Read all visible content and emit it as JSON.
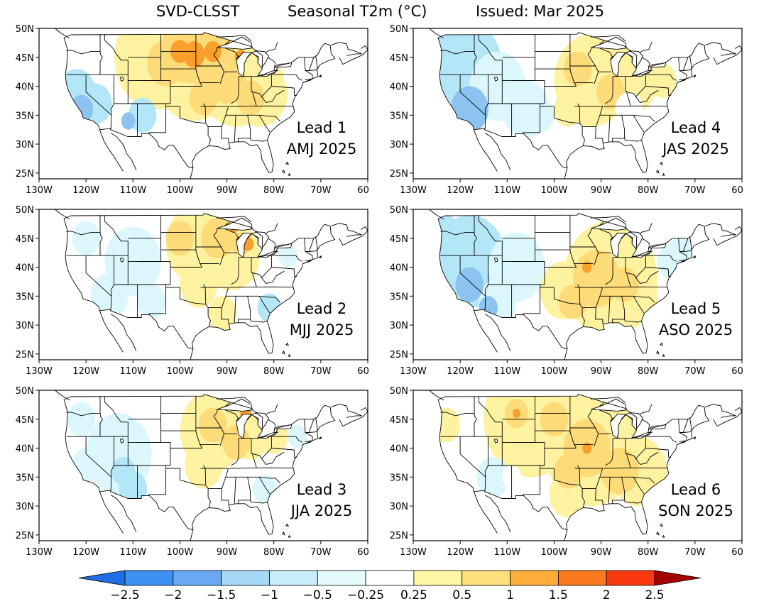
{
  "title": {
    "model": "SVD-CLSST",
    "variable": "Seasonal T2m (°C)",
    "issued": "Issued: Mar 2025"
  },
  "axes": {
    "lat_labels": [
      "50N",
      "45N",
      "40N",
      "35N",
      "30N",
      "25N"
    ],
    "lon_labels": [
      "130W",
      "120W",
      "110W",
      "100W",
      "90W",
      "80W",
      "70W",
      "60W"
    ],
    "lat_range": [
      24,
      50
    ],
    "lon_range": [
      -130,
      -60
    ]
  },
  "panels": [
    {
      "lead": "Lead 1",
      "season": "AMJ 2025"
    },
    {
      "lead": "Lead 4",
      "season": "JAS 2025"
    },
    {
      "lead": "Lead 2",
      "season": "MJJ 2025"
    },
    {
      "lead": "Lead 5",
      "season": "ASO 2025"
    },
    {
      "lead": "Lead 3",
      "season": "JJA 2025"
    },
    {
      "lead": "Lead 6",
      "season": "SON 2025"
    }
  ],
  "colorbar": {
    "labels": [
      "-2.5",
      "-2",
      "-1.5",
      "-1",
      "-0.5",
      "-0.25",
      "0.25",
      "0.5",
      "1",
      "1.5",
      "2",
      "2.5"
    ],
    "colors": [
      "#1e6ee6",
      "#3d8ff0",
      "#69a8f2",
      "#a4d8f5",
      "#c9eefa",
      "#e6fbfc",
      "#ffffff",
      "#fdf6a5",
      "#fce07c",
      "#fdae3a",
      "#fb7a1e",
      "#f93a10",
      "#c81e0a",
      "#a40000"
    ]
  },
  "legend_colors": {
    "strong_cold": "#4a86e8",
    "cold": "#8cc3f0",
    "cool": "#b3e6f7",
    "slight_cool": "#dcf7fb",
    "neutral": "#ffffff",
    "slight_warm": "#fdf2a0",
    "warm": "#fcdb78",
    "hot": "#fa9e2c",
    "very_hot": "#f07414"
  }
}
